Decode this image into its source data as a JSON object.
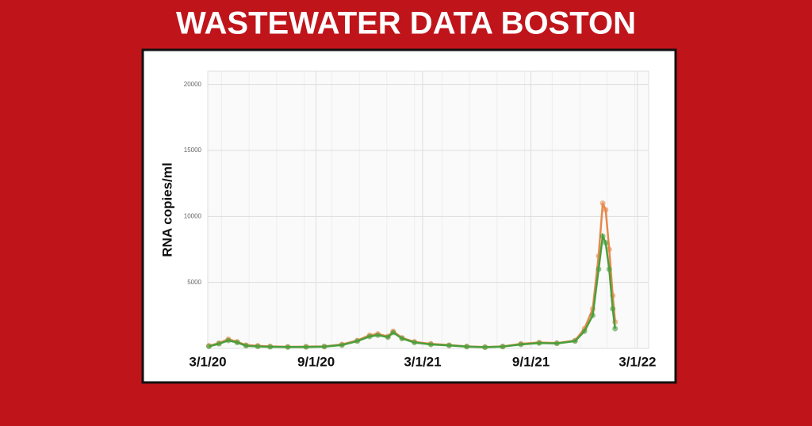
{
  "chart_data": {
    "type": "line",
    "title": "WASTEWATER DATA BOSTON",
    "y_label": "RNA copies/ml",
    "x": [
      "2020-03-03",
      "2020-03-20",
      "2020-04-05",
      "2020-04-20",
      "2020-05-05",
      "2020-05-25",
      "2020-06-15",
      "2020-07-15",
      "2020-08-15",
      "2020-09-15",
      "2020-10-15",
      "2020-11-10",
      "2020-12-01",
      "2020-12-15",
      "2021-01-01",
      "2021-01-10",
      "2021-01-25",
      "2021-02-15",
      "2021-03-15",
      "2021-04-15",
      "2021-05-15",
      "2021-06-15",
      "2021-07-15",
      "2021-08-15",
      "2021-09-15",
      "2021-10-15",
      "2021-11-15",
      "2021-12-01",
      "2021-12-15",
      "2021-12-25",
      "2022-01-01",
      "2022-01-06",
      "2022-01-12",
      "2022-01-18",
      "2022-01-22"
    ],
    "series": [
      {
        "color": "#e8884a",
        "values": [
          200,
          400,
          700,
          500,
          250,
          200,
          150,
          120,
          130,
          150,
          300,
          600,
          1000,
          1100,
          900,
          1300,
          800,
          500,
          350,
          250,
          150,
          100,
          150,
          350,
          450,
          400,
          600,
          1500,
          3000,
          7000,
          11000,
          10500,
          7500,
          4000,
          2000
        ]
      },
      {
        "color": "#4a9f3c",
        "values": [
          150,
          350,
          600,
          450,
          200,
          150,
          120,
          100,
          110,
          130,
          250,
          550,
          900,
          1000,
          850,
          1200,
          750,
          450,
          300,
          220,
          130,
          90,
          130,
          300,
          400,
          380,
          550,
          1300,
          2500,
          6000,
          8500,
          8000,
          6000,
          3000,
          1500
        ]
      }
    ],
    "xlim": [
      "2020-03-01",
      "2022-03-20"
    ],
    "xticks": [
      {
        "value": "2020-03-01",
        "label": "3/1/20"
      },
      {
        "value": "2020-09-01",
        "label": "9/1/20"
      },
      {
        "value": "2021-03-01",
        "label": "3/1/21"
      },
      {
        "value": "2021-09-01",
        "label": "9/1/21"
      },
      {
        "value": "2022-03-01",
        "label": "3/1/22"
      }
    ],
    "ylim": [
      0,
      21000
    ],
    "yticks": [
      5000,
      10000,
      15000,
      20000
    ],
    "grid": true
  }
}
